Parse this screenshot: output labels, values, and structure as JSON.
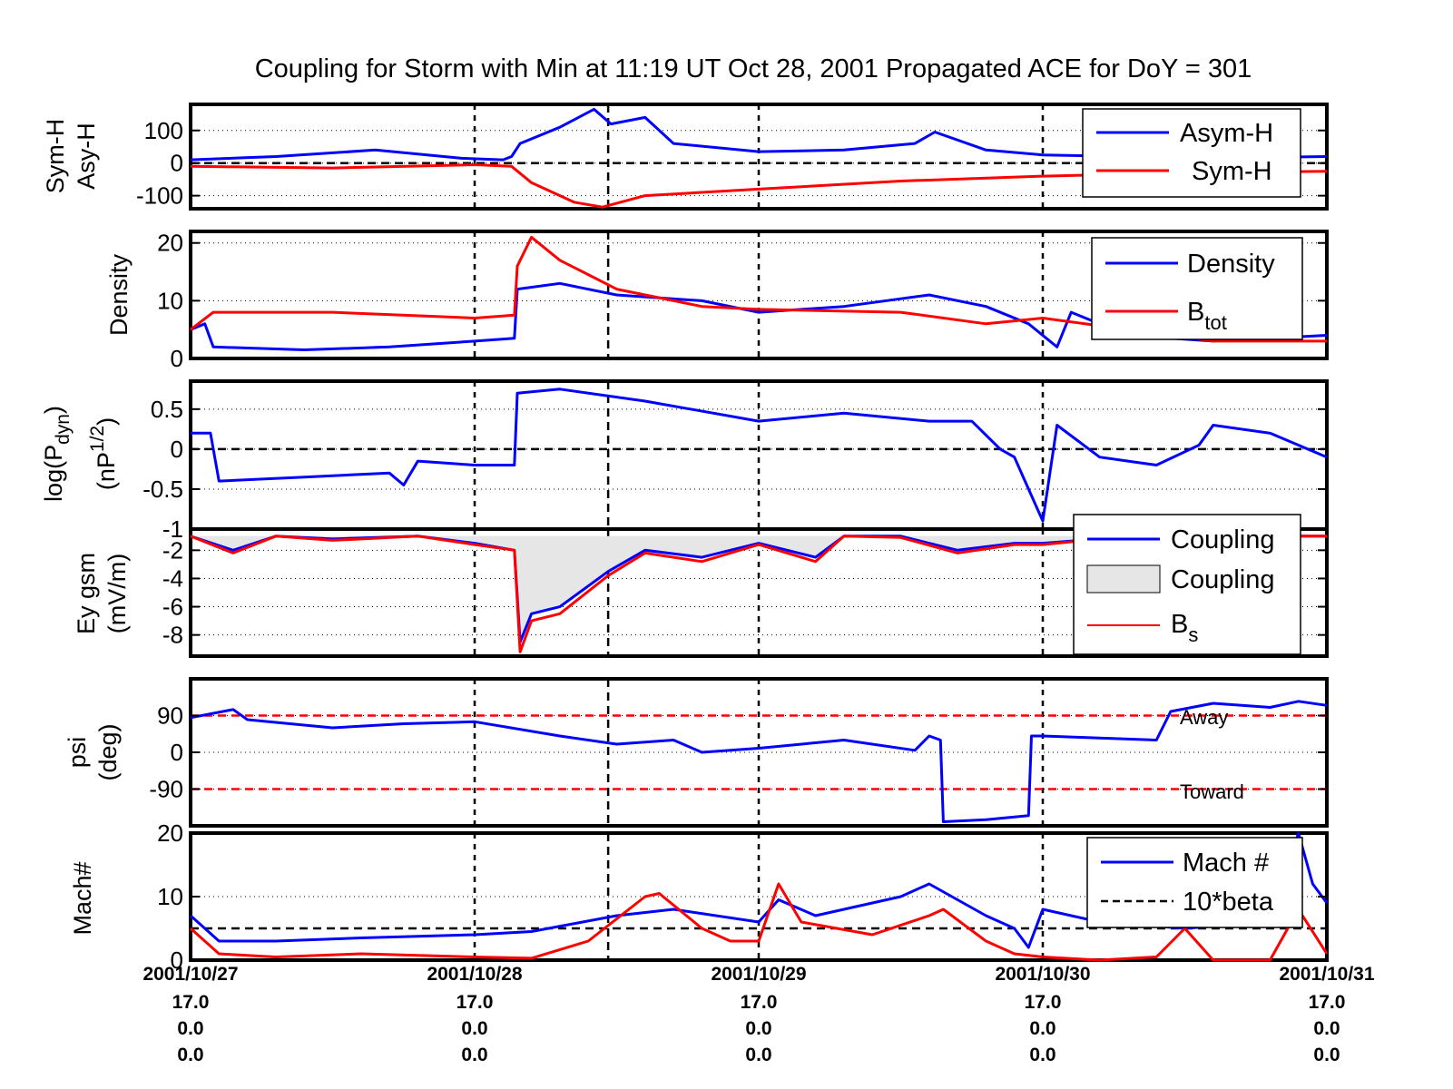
{
  "title": "Coupling for Storm with Min at 11:19 UT Oct 28, 2001  Propagated ACE for DoY = 301",
  "x_tick_rows": [
    [
      "2001/10/27",
      "2001/10/28",
      "2001/10/29",
      "2001/10/30",
      "2001/10/31"
    ],
    [
      "17.0",
      "17.0",
      "17.0",
      "17.0",
      "17.0"
    ],
    [
      "0.0",
      "0.0",
      "0.0",
      "0.0",
      "0.0"
    ],
    [
      "0.0",
      "0.0",
      "0.0",
      "0.0",
      "0.0"
    ]
  ],
  "colors": {
    "blue": "#0000ff",
    "red": "#ff0000",
    "fill": "#e6e6e6"
  },
  "chart_data": [
    {
      "type": "line",
      "ylabel": [
        "Sym-H",
        "Asy-H"
      ],
      "ylim": [
        -140,
        180
      ],
      "yticks": [
        100,
        0,
        -100
      ],
      "ytick_labels": [
        "100",
        "0",
        "-100"
      ],
      "xlim": [
        0,
        4
      ],
      "dashed_zero": true,
      "series": [
        {
          "name": "Asymm-H",
          "color": "blue",
          "x": [
            0,
            0.3,
            0.65,
            0.95,
            1.1,
            1.13,
            1.16,
            1.3,
            1.42,
            1.48,
            1.6,
            1.7,
            2.0,
            2.3,
            2.55,
            2.62,
            2.8,
            3.0,
            3.3,
            3.6,
            4.0
          ],
          "y": [
            10,
            20,
            40,
            15,
            10,
            20,
            60,
            110,
            165,
            120,
            140,
            60,
            35,
            40,
            60,
            95,
            40,
            25,
            20,
            15,
            20
          ]
        },
        {
          "name": "Sym-H",
          "color": "red",
          "x": [
            0,
            0.5,
            1.0,
            1.13,
            1.2,
            1.35,
            1.45,
            1.6,
            2.0,
            2.5,
            3.0,
            3.5,
            4.0
          ],
          "y": [
            -10,
            -15,
            -5,
            -10,
            -60,
            -120,
            -135,
            -100,
            -80,
            -55,
            -40,
            -30,
            -25
          ]
        }
      ],
      "legend": {
        "placement": "top-right",
        "entries": [
          "Asym-H",
          "Sym-H"
        ]
      }
    },
    {
      "type": "line",
      "ylabel": [
        "Density"
      ],
      "ylim": [
        0,
        22
      ],
      "yticks": [
        20,
        10,
        0
      ],
      "ytick_labels": [
        "20",
        "10",
        "0"
      ],
      "xlim": [
        0,
        4
      ],
      "series": [
        {
          "name": "Density",
          "color": "blue",
          "x": [
            0,
            0.05,
            0.08,
            0.4,
            0.7,
            1.0,
            1.14,
            1.15,
            1.3,
            1.5,
            1.8,
            2.0,
            2.3,
            2.6,
            2.8,
            2.95,
            3.05,
            3.1,
            3.3,
            3.6,
            4.0
          ],
          "y": [
            5,
            6,
            2,
            1.5,
            2,
            3,
            3.5,
            12,
            13,
            11,
            10,
            8,
            9,
            11,
            9,
            6,
            2,
            8,
            4,
            3,
            4
          ]
        },
        {
          "name": "Btot",
          "color": "red",
          "x": [
            0,
            0.08,
            0.5,
            1.0,
            1.14,
            1.15,
            1.2,
            1.3,
            1.5,
            1.8,
            2.0,
            2.5,
            2.8,
            3.0,
            3.3,
            3.6,
            4.0
          ],
          "y": [
            5,
            8,
            8,
            7,
            7.5,
            16,
            21,
            17,
            12,
            9,
            8.5,
            8,
            6,
            7,
            5,
            3,
            3
          ]
        }
      ],
      "legend": {
        "placement": "top-right",
        "entries": [
          "Density",
          "B",
          "tot"
        ]
      }
    },
    {
      "type": "line",
      "ylabel": [
        "log(P",
        "dyn",
        ")",
        "(nP",
        "1/2",
        ")"
      ],
      "ylim": [
        -1,
        0.85
      ],
      "yticks": [
        0.5,
        0,
        -0.5,
        -1
      ],
      "ytick_labels": [
        "0.5",
        "0",
        "-0.5",
        "-1"
      ],
      "xlim": [
        0,
        4
      ],
      "dashed_zero": true,
      "series": [
        {
          "name": "log(Pdyn)",
          "color": "blue",
          "x": [
            0,
            0.07,
            0.1,
            0.4,
            0.7,
            0.75,
            0.8,
            1.0,
            1.14,
            1.15,
            1.3,
            1.6,
            2.0,
            2.3,
            2.6,
            2.75,
            2.85,
            2.9,
            2.95,
            3.0,
            3.05,
            3.2,
            3.4,
            3.55,
            3.6,
            3.8,
            4.0
          ],
          "y": [
            0.2,
            0.2,
            -0.4,
            -0.35,
            -0.3,
            -0.45,
            -0.15,
            -0.2,
            -0.2,
            0.7,
            0.75,
            0.6,
            0.35,
            0.45,
            0.35,
            0.35,
            0.0,
            -0.1,
            -0.5,
            -0.9,
            0.3,
            -0.1,
            -0.2,
            0.05,
            0.3,
            0.2,
            -0.1
          ]
        }
      ]
    },
    {
      "type": "area",
      "ylabel": [
        "Ey gsm",
        "(mV/m)"
      ],
      "ylim": [
        -9.5,
        -0.5
      ],
      "yticks": [
        -2,
        -4,
        -6,
        -8
      ],
      "ytick_labels": [
        "-2",
        "-4",
        "-6",
        "-8"
      ],
      "xlim": [
        0,
        4
      ],
      "series": [
        {
          "name": "Coupling",
          "color": "blue",
          "x": [
            0,
            0.15,
            0.3,
            0.5,
            0.8,
            1.0,
            1.14,
            1.16,
            1.2,
            1.3,
            1.47,
            1.6,
            1.8,
            2.0,
            2.2,
            2.3,
            2.5,
            2.7,
            2.9,
            3.0,
            3.2,
            3.5,
            4.0
          ],
          "y": [
            -1,
            -2,
            -1,
            -1.2,
            -1,
            -1.5,
            -2,
            -8.5,
            -6.5,
            -6,
            -3.5,
            -2,
            -2.5,
            -1.5,
            -2.5,
            -1,
            -1,
            -2,
            -1.5,
            -1.5,
            -1.2,
            -1,
            -1
          ]
        },
        {
          "name": "Coupling (fill)",
          "color": "fill"
        },
        {
          "name": "Bs",
          "color": "red",
          "x": [
            0,
            0.15,
            0.3,
            0.5,
            0.8,
            1.0,
            1.14,
            1.16,
            1.2,
            1.3,
            1.47,
            1.6,
            1.8,
            2.0,
            2.2,
            2.3,
            2.5,
            2.7,
            2.9,
            3.0,
            3.2,
            3.5,
            4.0
          ],
          "y": [
            -1,
            -2.2,
            -1,
            -1.3,
            -1,
            -1.6,
            -2,
            -9.2,
            -7,
            -6.5,
            -3.8,
            -2.2,
            -2.8,
            -1.6,
            -2.8,
            -1,
            -1.1,
            -2.2,
            -1.6,
            -1.6,
            -1.2,
            -1,
            -1
          ]
        }
      ],
      "legend": {
        "placement": "top-right",
        "entries": [
          "Coupling",
          "Coupling",
          "B",
          "s"
        ]
      }
    },
    {
      "type": "line",
      "ylabel": [
        "psi",
        "(deg)"
      ],
      "ylim": [
        -180,
        180
      ],
      "yticks": [
        90,
        0,
        -90
      ],
      "ytick_labels": [
        "90",
        "0",
        "-90"
      ],
      "xlim": [
        0,
        4
      ],
      "reference_lines": [
        90,
        -90
      ],
      "annotations": [
        "Away",
        "Toward"
      ],
      "series": [
        {
          "name": "psi",
          "color": "blue",
          "x": [
            0,
            0.15,
            0.2,
            0.5,
            0.75,
            1.0,
            1.3,
            1.5,
            1.7,
            1.8,
            2.0,
            2.3,
            2.55,
            2.6,
            2.64,
            2.65,
            2.8,
            2.95,
            2.96,
            3.0,
            3.2,
            3.4,
            3.45,
            3.6,
            3.8,
            3.9,
            4.0
          ],
          "y": [
            85,
            105,
            80,
            60,
            70,
            75,
            40,
            20,
            30,
            0,
            10,
            30,
            5,
            40,
            30,
            -170,
            -165,
            -155,
            40,
            40,
            35,
            30,
            100,
            120,
            110,
            125,
            115
          ]
        }
      ]
    },
    {
      "type": "line",
      "ylabel": [
        "Mach#"
      ],
      "ylim": [
        0,
        20
      ],
      "yticks": [
        20,
        10,
        0
      ],
      "ytick_labels": [
        "20",
        "10",
        "0"
      ],
      "xlim": [
        0,
        4
      ],
      "reference_lines": [
        5
      ],
      "series": [
        {
          "name": "Mach #",
          "color": "blue",
          "x": [
            0,
            0.1,
            0.3,
            0.6,
            1.0,
            1.2,
            1.5,
            1.7,
            2.0,
            2.07,
            2.2,
            2.5,
            2.6,
            2.8,
            2.9,
            2.95,
            3.0,
            3.2,
            3.5,
            3.8,
            3.9,
            3.95,
            4.0
          ],
          "y": [
            7,
            3,
            3,
            3.5,
            4,
            4.5,
            7,
            8,
            6,
            9.5,
            7,
            10,
            12,
            7,
            5,
            2,
            8,
            6,
            5,
            6,
            22,
            12,
            9
          ]
        },
        {
          "name": "10*beta",
          "color": "red",
          "x": [
            0,
            0.1,
            0.3,
            0.6,
            1.0,
            1.2,
            1.4,
            1.6,
            1.65,
            1.8,
            1.9,
            2.0,
            2.07,
            2.15,
            2.4,
            2.6,
            2.65,
            2.8,
            2.9,
            3.0,
            3.2,
            3.4,
            3.5,
            3.6,
            3.8,
            3.9,
            4.0
          ],
          "y": [
            5,
            1,
            0.5,
            1,
            0.5,
            0.3,
            3,
            10,
            10.5,
            5,
            3,
            3,
            12,
            6,
            4,
            7,
            8,
            3,
            1,
            0.5,
            0,
            0.5,
            5,
            0,
            0,
            8,
            1
          ]
        }
      ],
      "legend": {
        "placement": "top-right",
        "entries": [
          "Mach #",
          "10*beta"
        ]
      }
    }
  ]
}
